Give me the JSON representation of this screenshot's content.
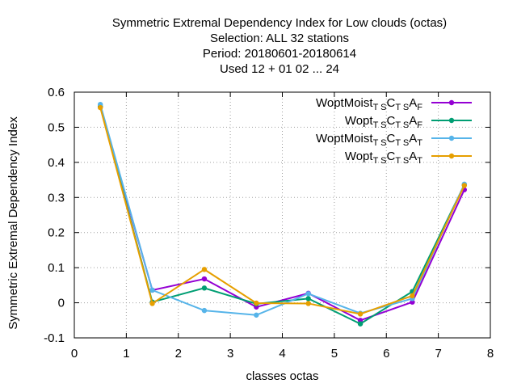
{
  "chart_data": {
    "type": "line",
    "title_lines": [
      "Symmetric Extremal Dependency Index  for Low clouds (octas)",
      "Selection: ALL     32 stations",
      "Period: 20180601-20180614",
      "Used  12 + 01 02 ... 24"
    ],
    "xlabel": "classes octas",
    "ylabel": "Symmetric Extremal Dependency Index",
    "xlim": [
      0,
      8
    ],
    "ylim": [
      -0.1,
      0.6
    ],
    "xticks": [
      "0",
      "1",
      "2",
      "3",
      "4",
      "5",
      "6",
      "7",
      "8"
    ],
    "yticks": [
      "-0.1",
      "0",
      "0.1",
      "0.2",
      "0.3",
      "0.4",
      "0.5",
      "0.6"
    ],
    "grid": true,
    "legend_position": "top-right",
    "x": [
      0.5,
      1.5,
      2.5,
      3.5,
      4.5,
      5.5,
      6.5,
      7.5
    ],
    "series": [
      {
        "name_parts": [
          {
            "t": "WoptMoist"
          },
          {
            "t": "T S",
            "sub": true
          },
          {
            "t": "C"
          },
          {
            "t": "T S",
            "sub": true
          },
          {
            "t": "A"
          },
          {
            "t": "F",
            "sub": true
          }
        ],
        "color": "#9400d3",
        "values": [
          0.558,
          0.036,
          0.068,
          -0.012,
          0.027,
          -0.05,
          0.002,
          0.322
        ]
      },
      {
        "name_parts": [
          {
            "t": "Wopt"
          },
          {
            "t": "T S",
            "sub": true
          },
          {
            "t": "C"
          },
          {
            "t": "T S",
            "sub": true
          },
          {
            "t": "A"
          },
          {
            "t": "F",
            "sub": true
          }
        ],
        "color": "#009e73",
        "values": [
          0.56,
          0.002,
          0.042,
          -0.003,
          0.012,
          -0.06,
          0.032,
          0.336
        ]
      },
      {
        "name_parts": [
          {
            "t": "WoptMoist"
          },
          {
            "t": "T S",
            "sub": true
          },
          {
            "t": "C"
          },
          {
            "t": "T S",
            "sub": true
          },
          {
            "t": "A"
          },
          {
            "t": "T",
            "sub": true
          }
        ],
        "color": "#56b4e9",
        "values": [
          0.565,
          0.036,
          -0.022,
          -0.035,
          0.026,
          -0.03,
          0.012,
          0.338
        ]
      },
      {
        "name_parts": [
          {
            "t": "Wopt"
          },
          {
            "t": "T S",
            "sub": true
          },
          {
            "t": "C"
          },
          {
            "t": "T S",
            "sub": true
          },
          {
            "t": "A"
          },
          {
            "t": "T",
            "sub": true
          }
        ],
        "color": "#e69f00",
        "values": [
          0.556,
          -0.002,
          0.095,
          -0.001,
          -0.002,
          -0.032,
          0.02,
          0.334
        ]
      }
    ]
  }
}
